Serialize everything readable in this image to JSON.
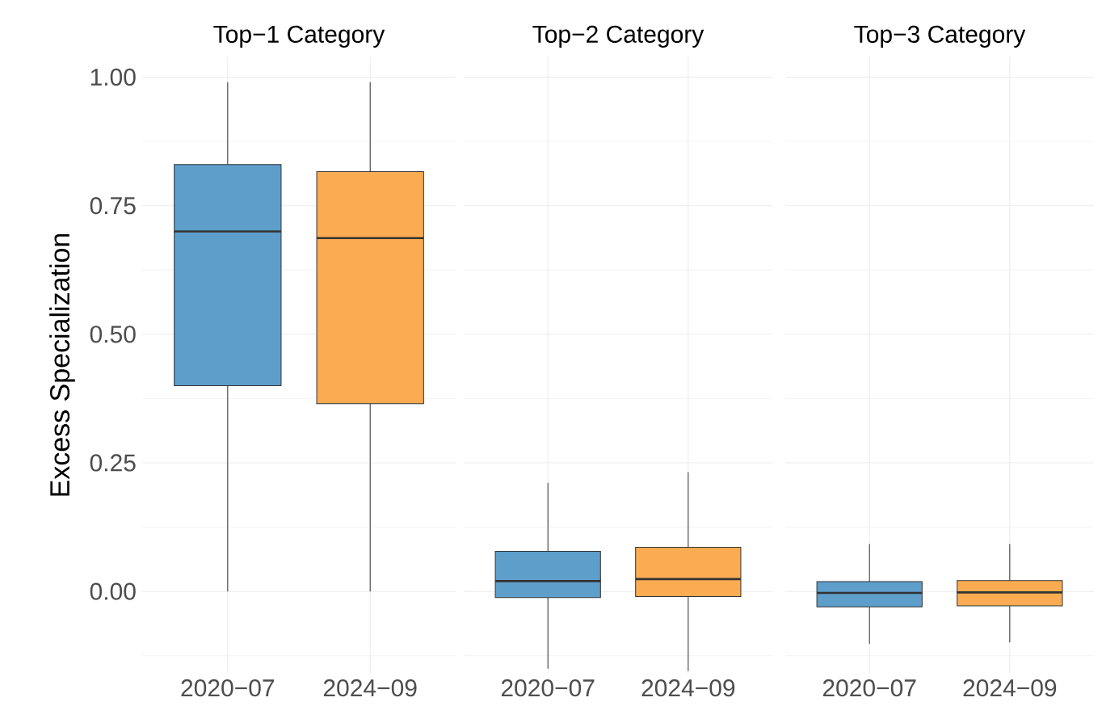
{
  "chart_data": [
    {
      "type": "box",
      "title": "Top−1 Category",
      "ylabel": "Excess Specialization",
      "categories": [
        "2020−07",
        "2024−09"
      ],
      "colors": [
        "#5e9ecb",
        "#fbac52"
      ],
      "ylim": [
        -0.16,
        1.04
      ],
      "yticks": [
        {
          "value": 0,
          "label": "0.00"
        },
        {
          "value": 0.25,
          "label": "0.25"
        },
        {
          "value": 0.5,
          "label": "0.50"
        },
        {
          "value": 0.75,
          "label": "0.75"
        },
        {
          "value": 1,
          "label": "1.00"
        }
      ],
      "grid": true,
      "boxes": [
        {
          "low": 0,
          "q1": 0.4,
          "median": 0.7,
          "q3": 0.83,
          "high": 0.99
        },
        {
          "low": 0,
          "q1": 0.365,
          "median": 0.687,
          "q3": 0.816,
          "high": 0.99
        }
      ]
    },
    {
      "type": "box",
      "title": "Top−2 Category",
      "categories": [
        "2020−07",
        "2024−09"
      ],
      "colors": [
        "#5e9ecb",
        "#fbac52"
      ],
      "ylim": [
        -0.16,
        1.04
      ],
      "yticks": [
        {
          "value": 0,
          "label": null
        },
        {
          "value": 0.25,
          "label": null
        },
        {
          "value": 0.5,
          "label": null
        },
        {
          "value": 0.75,
          "label": null
        },
        {
          "value": 1,
          "label": null
        }
      ],
      "grid": true,
      "tick_labels": "x",
      "boxes": [
        {
          "low": -0.15,
          "q1": -0.012,
          "median": 0.02,
          "q3": 0.078,
          "high": 0.211
        },
        {
          "low": -0.155,
          "q1": -0.01,
          "median": 0.024,
          "q3": 0.086,
          "high": 0.232
        }
      ]
    },
    {
      "type": "box",
      "title": "Top−3 Category",
      "categories": [
        "2020−07",
        "2024−09"
      ],
      "colors": [
        "#5e9ecb",
        "#fbac52"
      ],
      "ylim": [
        -0.16,
        1.04
      ],
      "yticks": [
        {
          "value": 0,
          "label": null
        },
        {
          "value": 0.25,
          "label": null
        },
        {
          "value": 0.5,
          "label": null
        },
        {
          "value": 0.75,
          "label": null
        },
        {
          "value": 1,
          "label": null
        }
      ],
      "grid": true,
      "tick_labels": "x",
      "boxes": [
        {
          "low": -0.102,
          "q1": -0.03,
          "median": -0.003,
          "q3": 0.019,
          "high": 0.092
        },
        {
          "low": -0.099,
          "q1": -0.028,
          "median": -0.002,
          "q3": 0.021,
          "high": 0.092
        }
      ]
    }
  ]
}
